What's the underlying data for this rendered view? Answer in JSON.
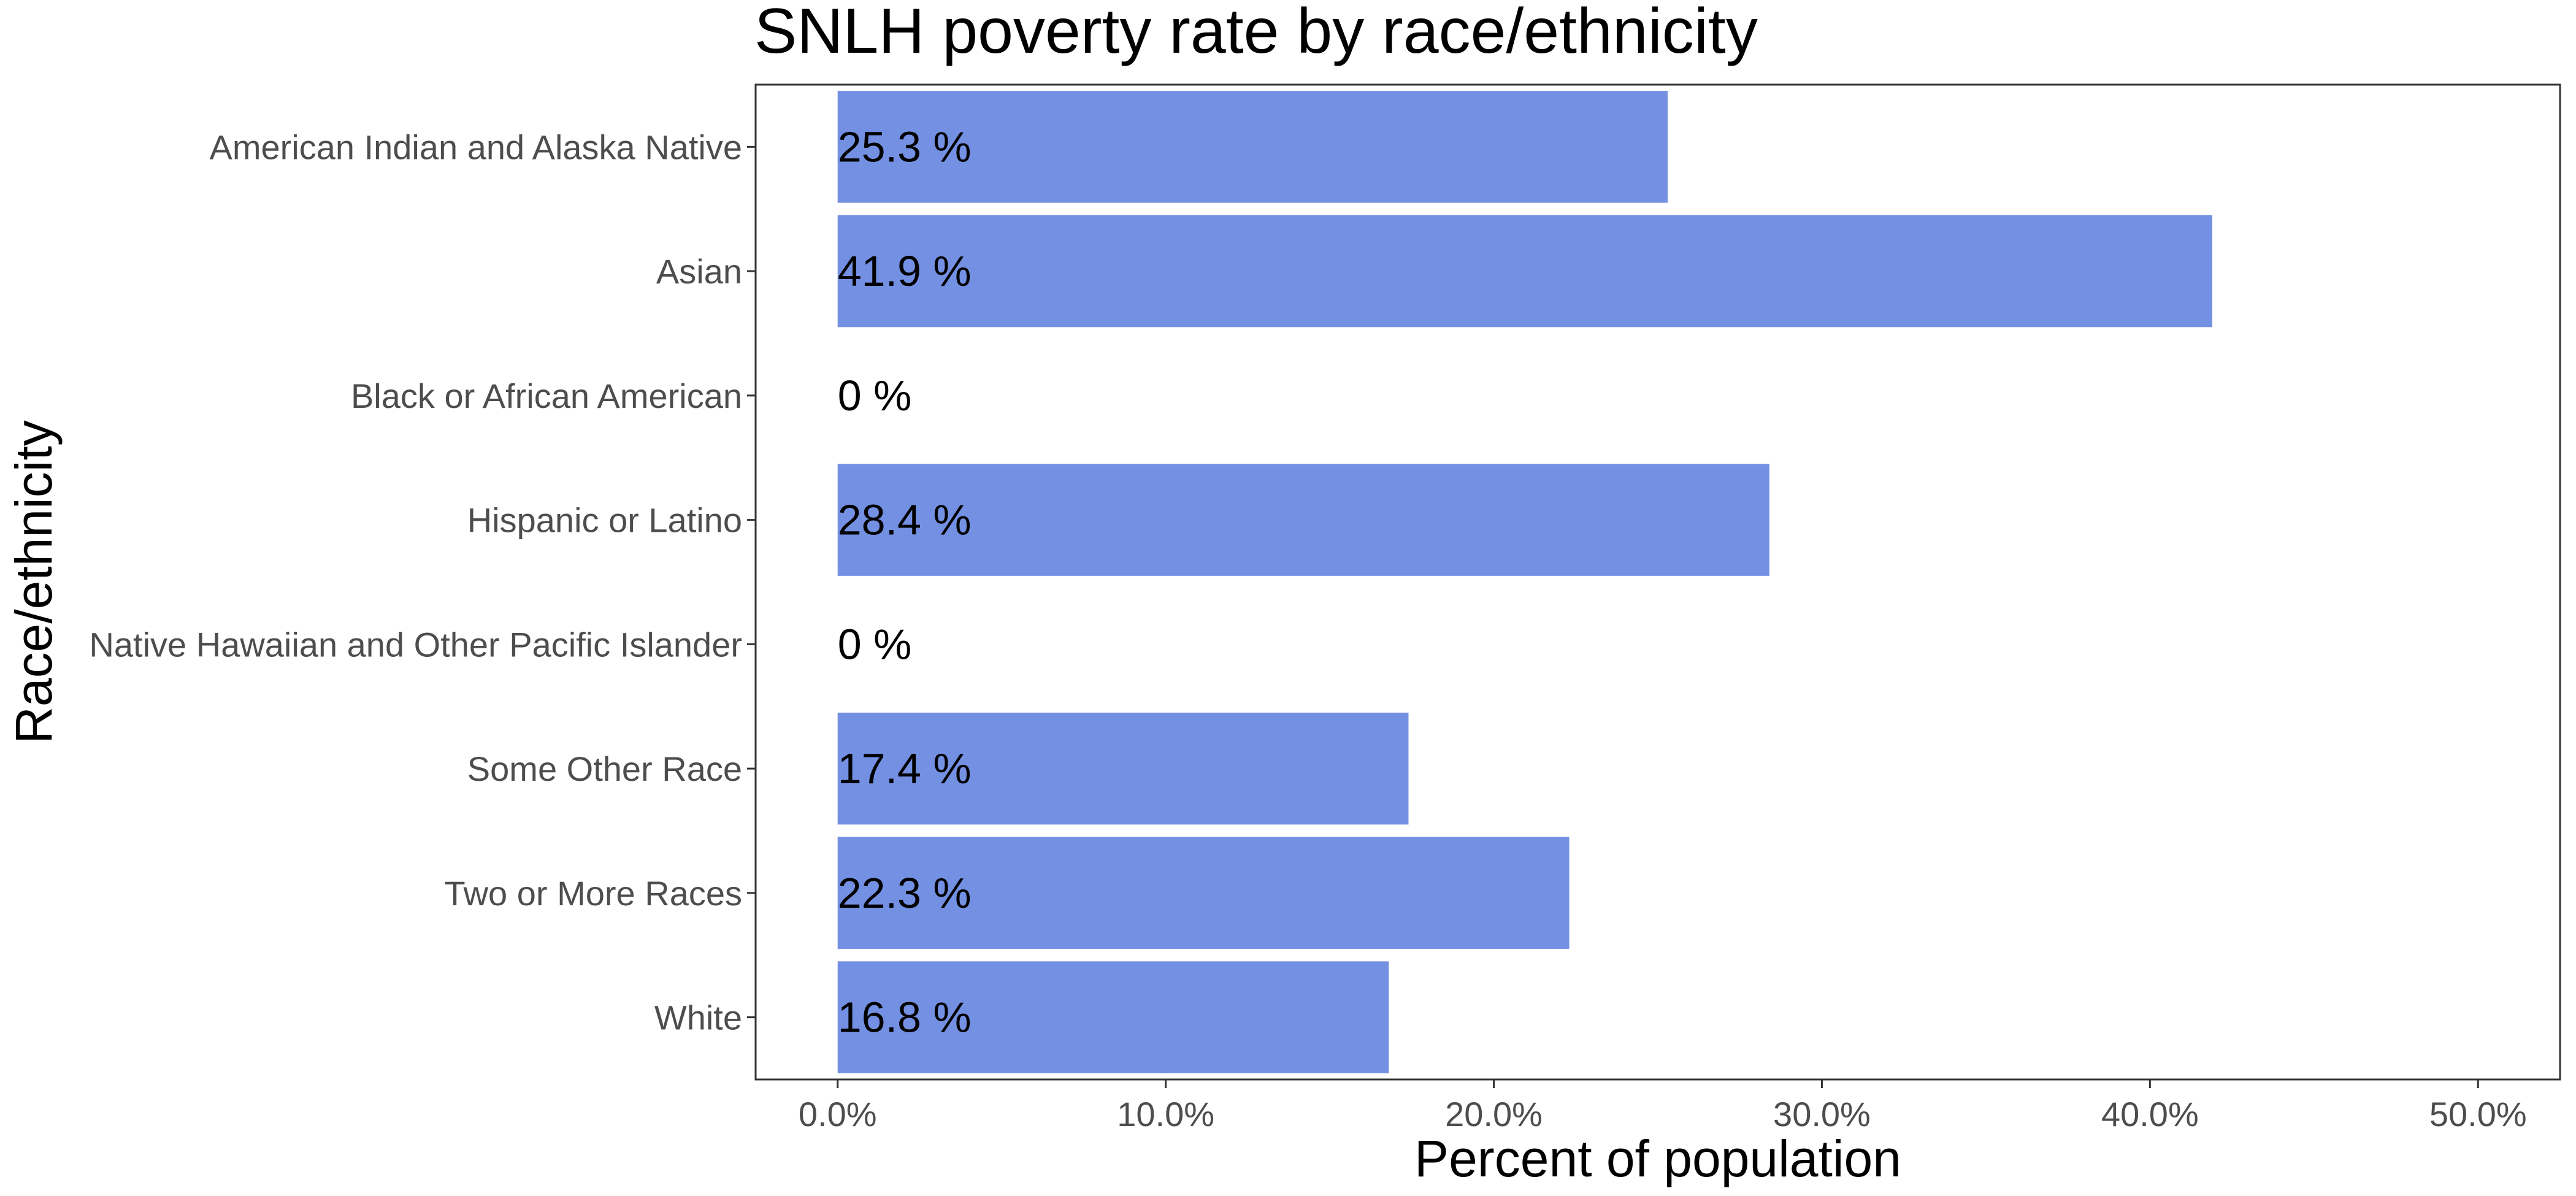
{
  "chart_data": {
    "type": "bar",
    "orientation": "horizontal",
    "title": "SNLH poverty rate by race/ethnicity",
    "xlabel": "Percent of population",
    "ylabel": "Race/ethnicity",
    "categories": [
      "American Indian and Alaska Native",
      "Asian",
      "Black or African American",
      "Hispanic or Latino",
      "Native Hawaiian and Other Pacific Islander",
      "Some Other Race",
      "Two or More Races",
      "White"
    ],
    "values": [
      25.3,
      41.9,
      0,
      28.4,
      0,
      17.4,
      22.3,
      16.8
    ],
    "data_labels": [
      "25.3 %",
      "41.9 %",
      "0 %",
      "28.4 %",
      "0 %",
      "17.4 %",
      "22.3 %",
      "16.8 %"
    ],
    "x_ticks": [
      0,
      10,
      20,
      30,
      40,
      50
    ],
    "x_tick_labels": [
      "0.0%",
      "10.0%",
      "20.0%",
      "30.0%",
      "40.0%",
      "50.0%"
    ],
    "xlim": [
      -2.5,
      52.5
    ],
    "bar_color": "#7490E3",
    "grid": false,
    "legend": "none"
  }
}
